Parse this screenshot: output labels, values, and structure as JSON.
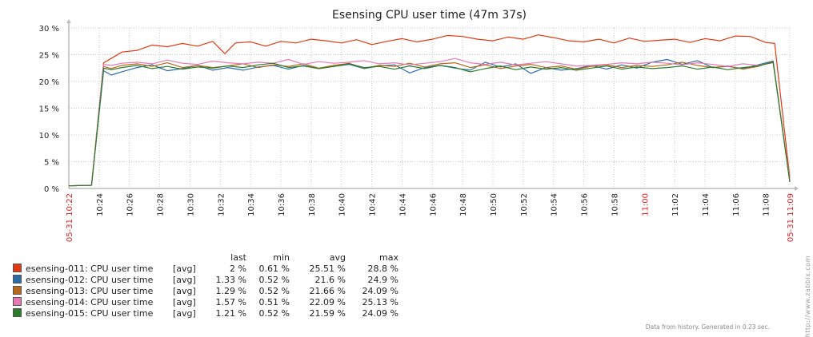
{
  "chart_data": {
    "type": "line",
    "title": "Esensing CPU user time (47m 37s)",
    "y_ticks": [
      "0 %",
      "5 %",
      "10 %",
      "15 %",
      "20 %",
      "25 %",
      "30 %"
    ],
    "ylim": [
      0,
      30
    ],
    "x_ticks": [
      {
        "label": "05-31 10:22",
        "min": 0,
        "red": true
      },
      {
        "label": "10:24",
        "min": 2
      },
      {
        "label": "10:26",
        "min": 4
      },
      {
        "label": "10:28",
        "min": 6
      },
      {
        "label": "10:30",
        "min": 8
      },
      {
        "label": "10:32",
        "min": 10
      },
      {
        "label": "10:34",
        "min": 12
      },
      {
        "label": "10:36",
        "min": 14
      },
      {
        "label": "10:38",
        "min": 16
      },
      {
        "label": "10:40",
        "min": 18
      },
      {
        "label": "10:42",
        "min": 20
      },
      {
        "label": "10:44",
        "min": 22
      },
      {
        "label": "10:46",
        "min": 24
      },
      {
        "label": "10:48",
        "min": 26
      },
      {
        "label": "10:50",
        "min": 28
      },
      {
        "label": "10:52",
        "min": 30
      },
      {
        "label": "10:54",
        "min": 32
      },
      {
        "label": "10:56",
        "min": 34
      },
      {
        "label": "10:58",
        "min": 36
      },
      {
        "label": "11:00",
        "min": 38,
        "red": true
      },
      {
        "label": "11:02",
        "min": 40
      },
      {
        "label": "11:04",
        "min": 42
      },
      {
        "label": "11:06",
        "min": 44
      },
      {
        "label": "11:08",
        "min": 46
      },
      {
        "label": "05-31 11:09",
        "min": 47.6,
        "red": true
      }
    ],
    "grid": true,
    "series": [
      {
        "name": "esensing-011: CPU user time",
        "color": "#e03a12",
        "func": "[avg]",
        "last": "2 %",
        "min": "0.61 %",
        "avg": "25.51 %",
        "max": "28.8 %",
        "x": [
          0,
          1.5,
          2.3,
          2.8,
          3.5,
          4.5,
          5.5,
          6.5,
          7.5,
          8.5,
          9.5,
          10.3,
          11,
          12,
          13,
          14,
          15,
          16,
          17,
          18,
          19,
          20,
          21,
          22,
          23,
          24,
          25,
          26,
          27,
          28,
          29,
          30,
          31,
          32,
          33,
          34,
          35,
          36,
          37,
          38,
          39,
          40,
          41,
          42,
          43,
          44,
          45,
          46,
          46.6,
          47.6
        ],
        "y": [
          0.5,
          0.6,
          23.5,
          24.3,
          25.5,
          25.8,
          26.8,
          26.5,
          27.1,
          26.6,
          27.5,
          25.2,
          27.2,
          27.4,
          26.6,
          27.5,
          27.2,
          27.9,
          27.6,
          27.2,
          27.8,
          26.9,
          27.5,
          28.0,
          27.4,
          27.9,
          28.6,
          28.4,
          27.9,
          27.6,
          28.3,
          27.9,
          28.7,
          28.2,
          27.6,
          27.4,
          27.9,
          27.2,
          28.1,
          27.5,
          27.7,
          27.9,
          27.3,
          28.0,
          27.6,
          28.5,
          28.4,
          27.3,
          27.1,
          2.0
        ]
      },
      {
        "name": "esensing-012: CPU user time",
        "color": "#2b6ca8",
        "func": "[avg]",
        "last": "1.33 %",
        "min": "0.52 %",
        "avg": "21.6 %",
        "max": "24.9 %",
        "x": [
          0,
          1.5,
          2.3,
          2.8,
          3.5,
          4.5,
          5.5,
          6.5,
          7.5,
          8.5,
          9.5,
          10.5,
          11.5,
          12.5,
          13.5,
          14.5,
          15.5,
          16.5,
          17.5,
          18.5,
          19.5,
          20.5,
          21.5,
          22.5,
          23.5,
          24.5,
          25.5,
          26.5,
          27.5,
          28.5,
          29.5,
          30.5,
          31.5,
          32.5,
          33.5,
          34.5,
          35.5,
          36.5,
          37.5,
          38.5,
          39.5,
          40.5,
          41.5,
          42.5,
          43.5,
          44.5,
          45.5,
          46.5,
          47.6
        ],
        "y": [
          0.5,
          0.6,
          22.0,
          21.2,
          21.8,
          22.6,
          23.1,
          22.0,
          22.4,
          23.0,
          22.1,
          22.6,
          22.1,
          22.7,
          23.0,
          22.3,
          23.0,
          22.4,
          22.8,
          23.2,
          22.4,
          22.9,
          23.1,
          21.6,
          22.6,
          23.0,
          22.5,
          22.1,
          23.6,
          22.7,
          23.3,
          21.5,
          22.6,
          22.1,
          22.4,
          23.0,
          22.3,
          23.1,
          22.5,
          23.6,
          24.1,
          23.2,
          23.9,
          22.6,
          22.8,
          22.4,
          23.1,
          23.8,
          1.3
        ]
      },
      {
        "name": "esensing-013: CPU user time",
        "color": "#b8681a",
        "func": "[avg]",
        "last": "1.29 %",
        "min": "0.52 %",
        "avg": "21.66 %",
        "max": "24.09 %",
        "x": [
          0,
          1.5,
          2.3,
          2.8,
          3.5,
          4.5,
          5.5,
          6.5,
          7.5,
          8.5,
          9.5,
          10.5,
          11.5,
          12.5,
          13.5,
          14.5,
          15.5,
          16.5,
          17.5,
          18.5,
          19.5,
          20.5,
          21.5,
          22.5,
          23.5,
          24.5,
          25.5,
          26.5,
          27.5,
          28.5,
          29.5,
          30.5,
          31.5,
          32.5,
          33.5,
          34.5,
          35.5,
          36.5,
          37.5,
          38.5,
          39.5,
          40.5,
          41.5,
          42.5,
          43.5,
          44.5,
          45.5,
          46.5,
          47.6
        ],
        "y": [
          0.5,
          0.6,
          22.8,
          22.4,
          23.0,
          23.3,
          22.8,
          23.5,
          22.6,
          23.0,
          22.6,
          22.9,
          23.3,
          22.6,
          23.1,
          22.8,
          23.3,
          22.5,
          23.0,
          23.4,
          22.5,
          23.0,
          22.8,
          23.4,
          22.7,
          23.3,
          23.5,
          22.6,
          23.1,
          22.4,
          22.9,
          23.2,
          22.6,
          22.9,
          22.3,
          22.8,
          23.1,
          22.6,
          23.0,
          22.8,
          23.1,
          23.6,
          23.0,
          22.6,
          22.9,
          22.3,
          22.8,
          23.7,
          1.29
        ]
      },
      {
        "name": "esensing-014: CPU user time",
        "color": "#e879b8",
        "func": "[avg]",
        "last": "1.57 %",
        "min": "0.51 %",
        "avg": "22.09 %",
        "max": "25.13 %",
        "x": [
          0,
          1.5,
          2.3,
          2.8,
          3.5,
          4.5,
          5.5,
          6.5,
          7.5,
          8.5,
          9.5,
          10.5,
          11.5,
          12.5,
          13.5,
          14.5,
          15.5,
          16.5,
          17.5,
          18.5,
          19.5,
          20.5,
          21.5,
          22.5,
          23.5,
          24.5,
          25.5,
          26.5,
          27.5,
          28.5,
          29.5,
          30.5,
          31.5,
          32.5,
          33.5,
          34.5,
          35.5,
          36.5,
          37.5,
          38.5,
          39.5,
          40.5,
          41.5,
          42.5,
          43.5,
          44.5,
          45.5,
          46.5,
          47.6
        ],
        "y": [
          0.5,
          0.6,
          23.2,
          23.0,
          23.4,
          23.6,
          23.3,
          24.0,
          23.4,
          23.2,
          23.8,
          23.5,
          23.3,
          23.6,
          23.4,
          24.1,
          23.2,
          23.7,
          23.4,
          23.6,
          23.9,
          23.3,
          23.5,
          23.1,
          23.4,
          23.7,
          24.3,
          23.5,
          23.2,
          23.6,
          23.1,
          23.4,
          23.7,
          23.3,
          22.9,
          23.0,
          23.2,
          23.5,
          23.3,
          23.6,
          23.4,
          23.1,
          23.5,
          23.2,
          22.8,
          23.3,
          23.0,
          23.5,
          1.57
        ]
      },
      {
        "name": "esensing-015: CPU user time",
        "color": "#2a7d2a",
        "func": "[avg]",
        "last": "1.21 %",
        "min": "0.52 %",
        "avg": "21.59 %",
        "max": "24.09 %",
        "x": [
          0,
          1.5,
          2.3,
          2.8,
          3.5,
          4.5,
          5.5,
          6.5,
          7.5,
          8.5,
          9.5,
          10.5,
          11.5,
          12.5,
          13.5,
          14.5,
          15.5,
          16.5,
          17.5,
          18.5,
          19.5,
          20.5,
          21.5,
          22.5,
          23.5,
          24.5,
          25.5,
          26.5,
          27.5,
          28.5,
          29.5,
          30.5,
          31.5,
          32.5,
          33.5,
          34.5,
          35.5,
          36.5,
          37.5,
          38.5,
          39.5,
          40.5,
          41.5,
          42.5,
          43.5,
          44.5,
          45.5,
          46.5,
          47.6
        ],
        "y": [
          0.5,
          0.6,
          22.5,
          22.2,
          22.6,
          23.0,
          22.4,
          22.8,
          22.3,
          22.7,
          22.5,
          22.9,
          22.6,
          23.1,
          23.4,
          22.6,
          22.9,
          22.4,
          22.8,
          23.3,
          22.6,
          22.8,
          22.3,
          22.9,
          22.4,
          23.0,
          22.6,
          21.8,
          22.4,
          22.9,
          22.2,
          22.7,
          22.3,
          22.6,
          22.1,
          22.5,
          22.9,
          22.3,
          22.7,
          22.4,
          22.6,
          22.9,
          22.3,
          22.7,
          22.2,
          22.6,
          22.9,
          23.6,
          1.21
        ]
      }
    ]
  },
  "legend": {
    "headers": {
      "last": "last",
      "min": "min",
      "avg": "avg",
      "max": "max"
    }
  },
  "footer": "Data from history. Generated in 0.23 sec.",
  "side_text": "http://www.zabbix.com"
}
